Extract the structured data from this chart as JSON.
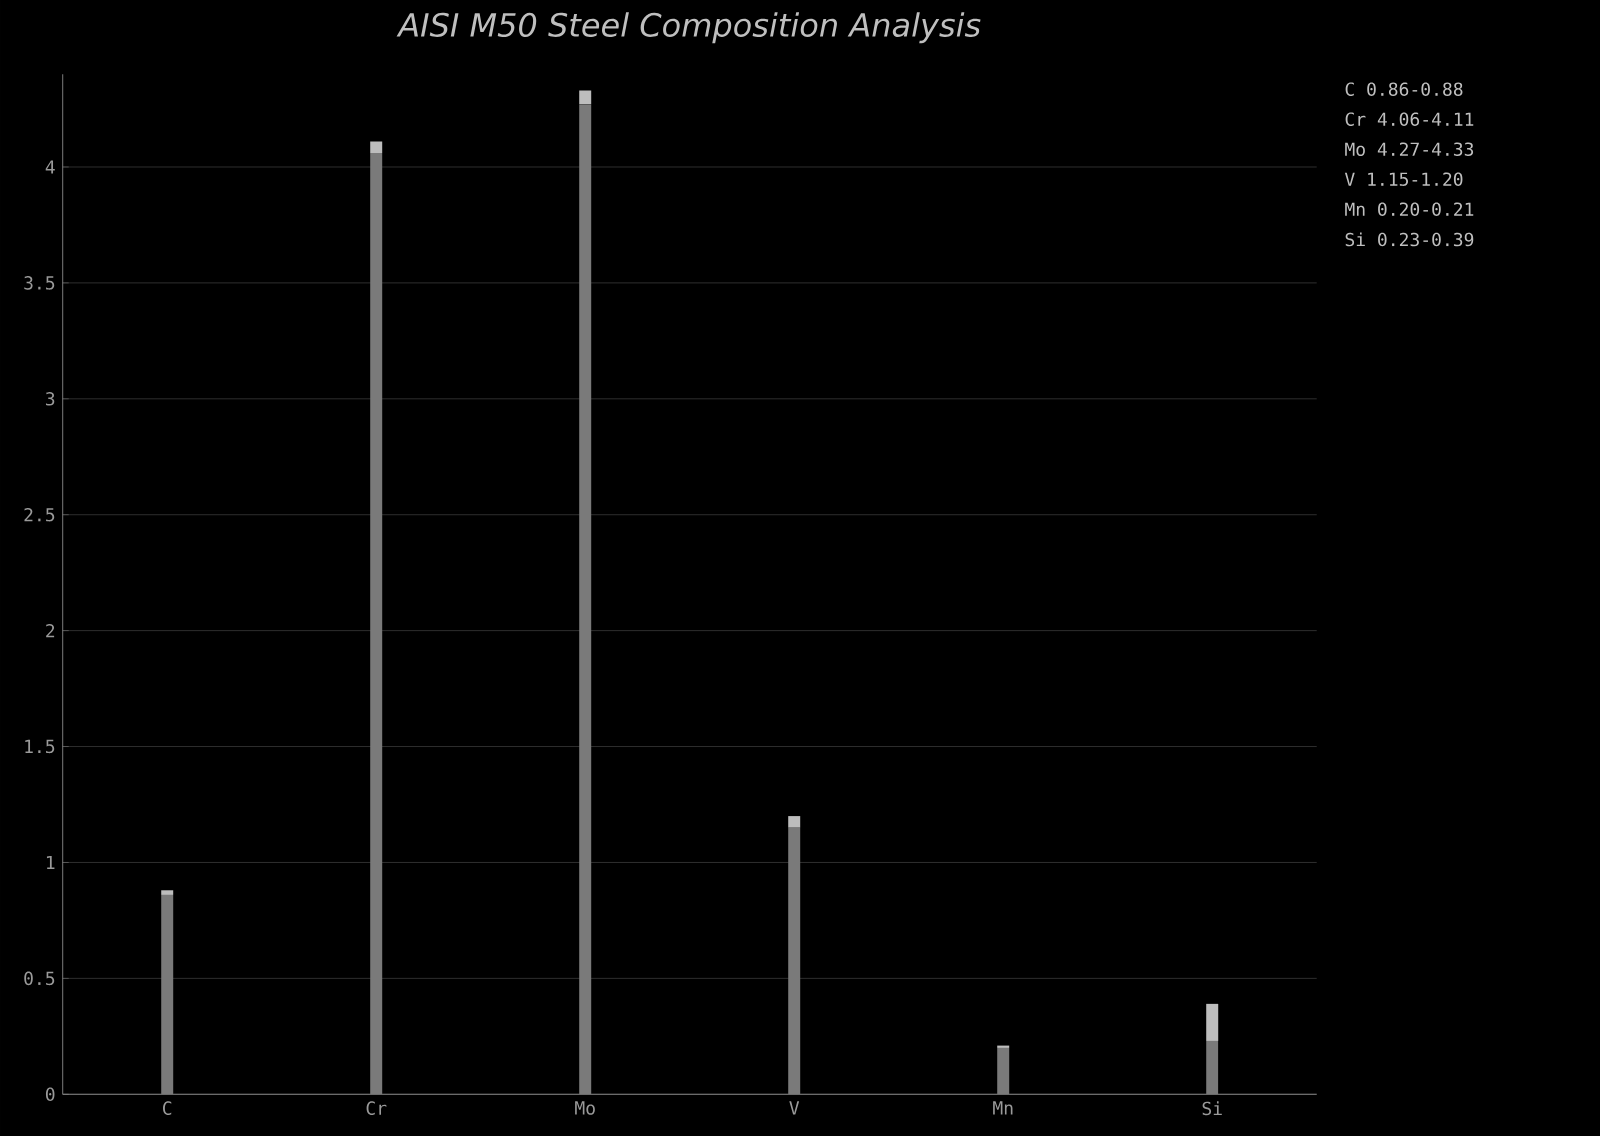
{
  "chart_data": {
    "type": "bar",
    "title": "AISI M50 Steel Composition Analysis",
    "categories": [
      "C",
      "Cr",
      "Mo",
      "V",
      "Mn",
      "Si"
    ],
    "stacked": true,
    "series": [
      {
        "color": "#7a7a7a",
        "values": [
          0.86,
          4.06,
          4.27,
          1.15,
          0.2,
          0.23
        ]
      },
      {
        "color": "#bdbdbd",
        "values": [
          0.02,
          0.05,
          0.06,
          0.05,
          0.01,
          0.16
        ]
      }
    ],
    "ylim": [
      0,
      4.4
    ],
    "yticks": [
      0,
      0.5,
      1,
      1.5,
      2,
      2.5,
      3,
      3.5,
      4
    ],
    "grid": "y",
    "annotations": [
      "C  0.86-0.88",
      "Cr 4.06-4.11",
      "Mo 4.27-4.33",
      "V  1.15-1.20",
      "Mn 0.20-0.21",
      "Si 0.23-0.39"
    ]
  }
}
